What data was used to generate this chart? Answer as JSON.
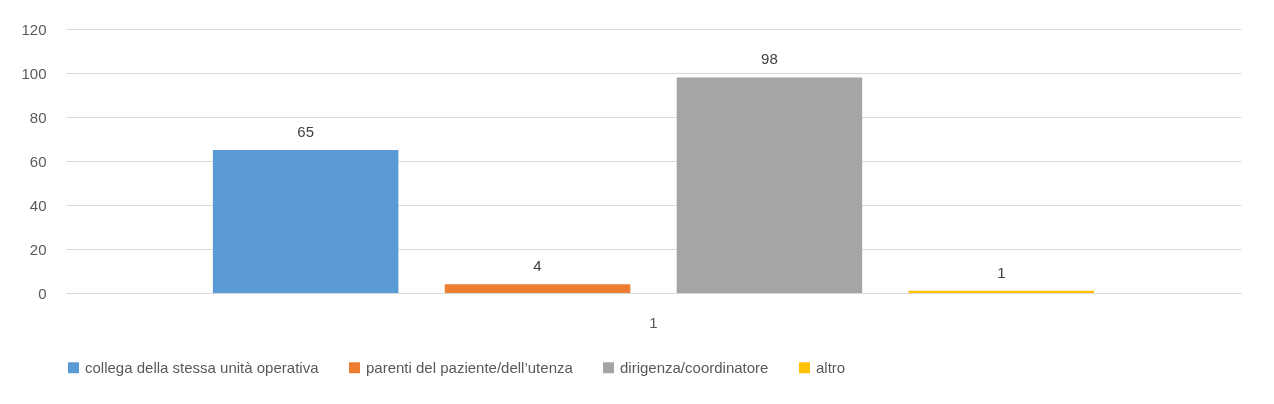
{
  "chart_data": {
    "type": "bar",
    "categories": [
      "1"
    ],
    "series": [
      {
        "name": "collega della stessa unità operativa",
        "color": "#5b9bd5",
        "values": [
          65
        ]
      },
      {
        "name": "parenti del paziente/dell’utenza",
        "color": "#ed7d31",
        "values": [
          4
        ]
      },
      {
        "name": "dirigenza/coordinatore",
        "color": "#a5a5a5",
        "values": [
          98
        ]
      },
      {
        "name": "altro",
        "color": "#ffc000",
        "values": [
          1
        ]
      }
    ],
    "ylim": [
      0,
      120
    ],
    "yticks": [
      0,
      20,
      40,
      60,
      80,
      100,
      120
    ],
    "grid": "y",
    "legend": "bottom",
    "data_labels": true
  }
}
